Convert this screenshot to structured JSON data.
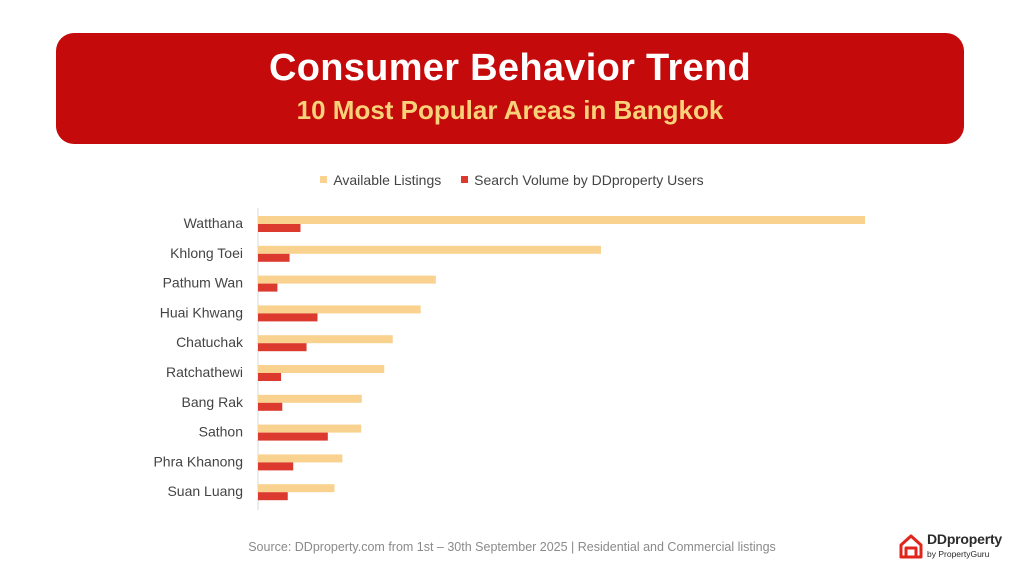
{
  "header": {
    "title": "Consumer Behavior Trend",
    "subtitle": "10 Most Popular Areas in Bangkok"
  },
  "colors": {
    "banner": "#c40a0a",
    "subtitle": "#f8d27a",
    "available": "#f9d28f",
    "search": "#dc3a2e"
  },
  "chart_data": {
    "type": "bar",
    "orientation": "horizontal",
    "categories": [
      "Watthana",
      "Khlong Toei",
      "Pathum Wan",
      "Huai Khwang",
      "Chatuchak",
      "Ratchathewi",
      "Bang Rak",
      "Sathon",
      "Phra Khanong",
      "Suan Luang"
    ],
    "series": [
      {
        "name": "Available Listings",
        "color": "#f9d28f",
        "values": [
          100,
          56.5,
          29.3,
          26.8,
          22.2,
          20.8,
          17.1,
          17.0,
          13.9,
          12.6
        ]
      },
      {
        "name": "Search Volume by DDproperty Users",
        "color": "#dc3a2e",
        "values": [
          7.0,
          5.2,
          3.2,
          9.8,
          8.0,
          3.8,
          4.0,
          11.5,
          5.8,
          4.9
        ]
      }
    ],
    "title": "",
    "xlabel": "",
    "ylabel": "",
    "xlim": [
      0,
      100
    ],
    "grid": false,
    "legend_position": "top-center"
  },
  "footer": {
    "source": "Source: DDproperty.com from 1st – 30th September 2025 | Residential and Commercial listings"
  },
  "logo": {
    "name": "DDproperty",
    "byline": "by PropertyGuru"
  }
}
